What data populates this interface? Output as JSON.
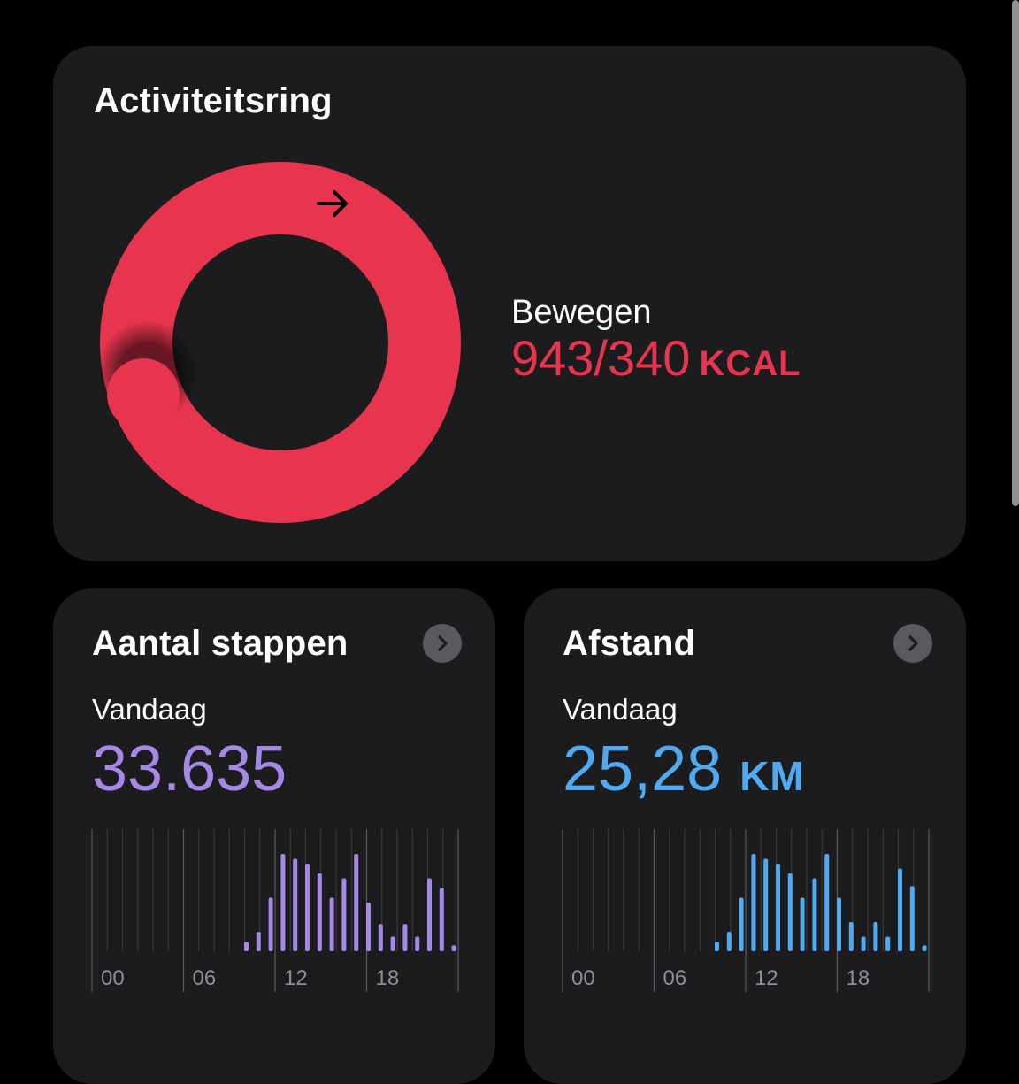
{
  "activity": {
    "title": "Activiteitsring",
    "move_label": "Bewegen",
    "move_value": "943/340",
    "move_unit": "KCAL",
    "move_progress_fraction": 2.77,
    "ring_color": "#e8354f",
    "arrow_icon": "arrow-right-icon"
  },
  "steps": {
    "title": "Aantal stappen",
    "period": "Vandaag",
    "value": "33.635",
    "color": "#a48ae6",
    "axis_labels": [
      "00",
      "06",
      "12",
      "18"
    ],
    "hourly": [
      0,
      0,
      0,
      0,
      0,
      0,
      0,
      0,
      0,
      0,
      0,
      0,
      0.1,
      0.2,
      0.55,
      1.0,
      0.95,
      0.9,
      0.8,
      0.55,
      0.75,
      1.0,
      0.5,
      0.28,
      0.15,
      0.28,
      0.15,
      0.75,
      0.65,
      0.06
    ]
  },
  "distance": {
    "title": "Afstand",
    "period": "Vandaag",
    "value": "25,28",
    "unit": "KM",
    "color": "#4faaf2",
    "axis_labels": [
      "00",
      "06",
      "12",
      "18"
    ],
    "hourly": [
      0,
      0,
      0,
      0,
      0,
      0,
      0,
      0,
      0,
      0,
      0,
      0,
      0.1,
      0.2,
      0.55,
      1.0,
      0.95,
      0.9,
      0.8,
      0.55,
      0.75,
      1.0,
      0.55,
      0.3,
      0.15,
      0.3,
      0.15,
      0.85,
      0.67,
      0.06
    ]
  }
}
